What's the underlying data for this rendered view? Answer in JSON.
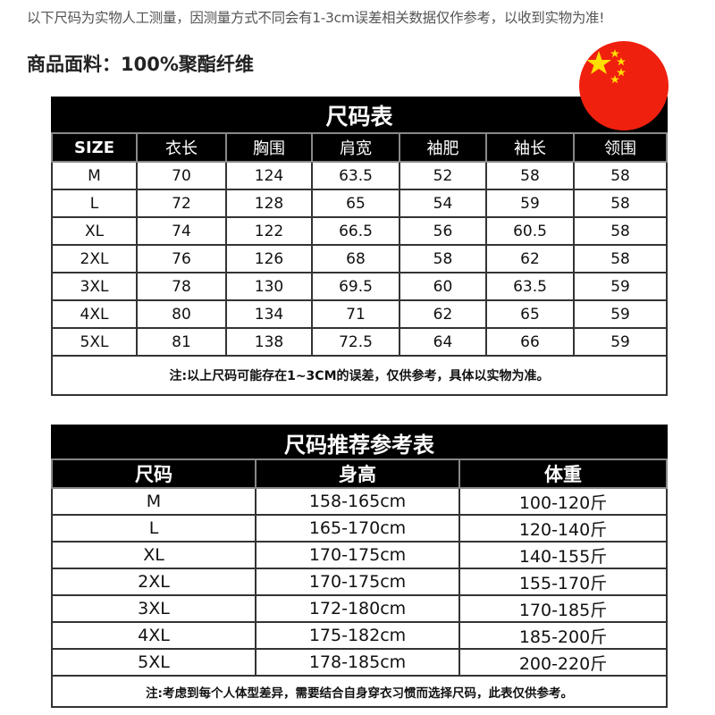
{
  "notice": "以下尺码为实物人工测量，因测量方式不同会有1-3cm误差相关数据仅作参考，以收到实物为准!",
  "fabric": "商品面料：100%聚酯纤维",
  "flag": {
    "icon": "china-flag-icon",
    "colors": {
      "red": "#f0200f",
      "star": "#ffde00"
    }
  },
  "size_table": {
    "title": "尺码表",
    "headers": [
      "SIZE",
      "衣长",
      "胸围",
      "肩宽",
      "袖肥",
      "袖长",
      "领围"
    ],
    "rows": [
      [
        "M",
        "70",
        "124",
        "63.5",
        "52",
        "58",
        "58"
      ],
      [
        "L",
        "72",
        "128",
        "65",
        "54",
        "59",
        "58"
      ],
      [
        "XL",
        "74",
        "122",
        "66.5",
        "56",
        "60.5",
        "58"
      ],
      [
        "2XL",
        "76",
        "126",
        "68",
        "58",
        "62",
        "58"
      ],
      [
        "3XL",
        "78",
        "130",
        "69.5",
        "60",
        "63.5",
        "59"
      ],
      [
        "4XL",
        "80",
        "134",
        "71",
        "62",
        "65",
        "59"
      ],
      [
        "5XL",
        "81",
        "138",
        "72.5",
        "64",
        "66",
        "59"
      ]
    ],
    "note": "注:以上尺码可能存在1~3CM的误差，仅供参考，具体以实物为准。"
  },
  "recommend_table": {
    "title": "尺码推荐参考表",
    "headers": [
      "尺码",
      "身高",
      "体重"
    ],
    "rows": [
      [
        "M",
        "158-165cm",
        "100-120斤"
      ],
      [
        "L",
        "165-170cm",
        "120-140斤"
      ],
      [
        "XL",
        "170-175cm",
        "140-155斤"
      ],
      [
        "2XL",
        "170-175cm",
        "155-170斤"
      ],
      [
        "3XL",
        "172-180cm",
        "170-185斤"
      ],
      [
        "4XL",
        "175-182cm",
        "185-200斤"
      ],
      [
        "5XL",
        "178-185cm",
        "200-220斤"
      ]
    ],
    "note": "注:考虑到每个人体型差异，需要结合自身穿衣习惯而选择尺码，此表仅供参考。"
  }
}
